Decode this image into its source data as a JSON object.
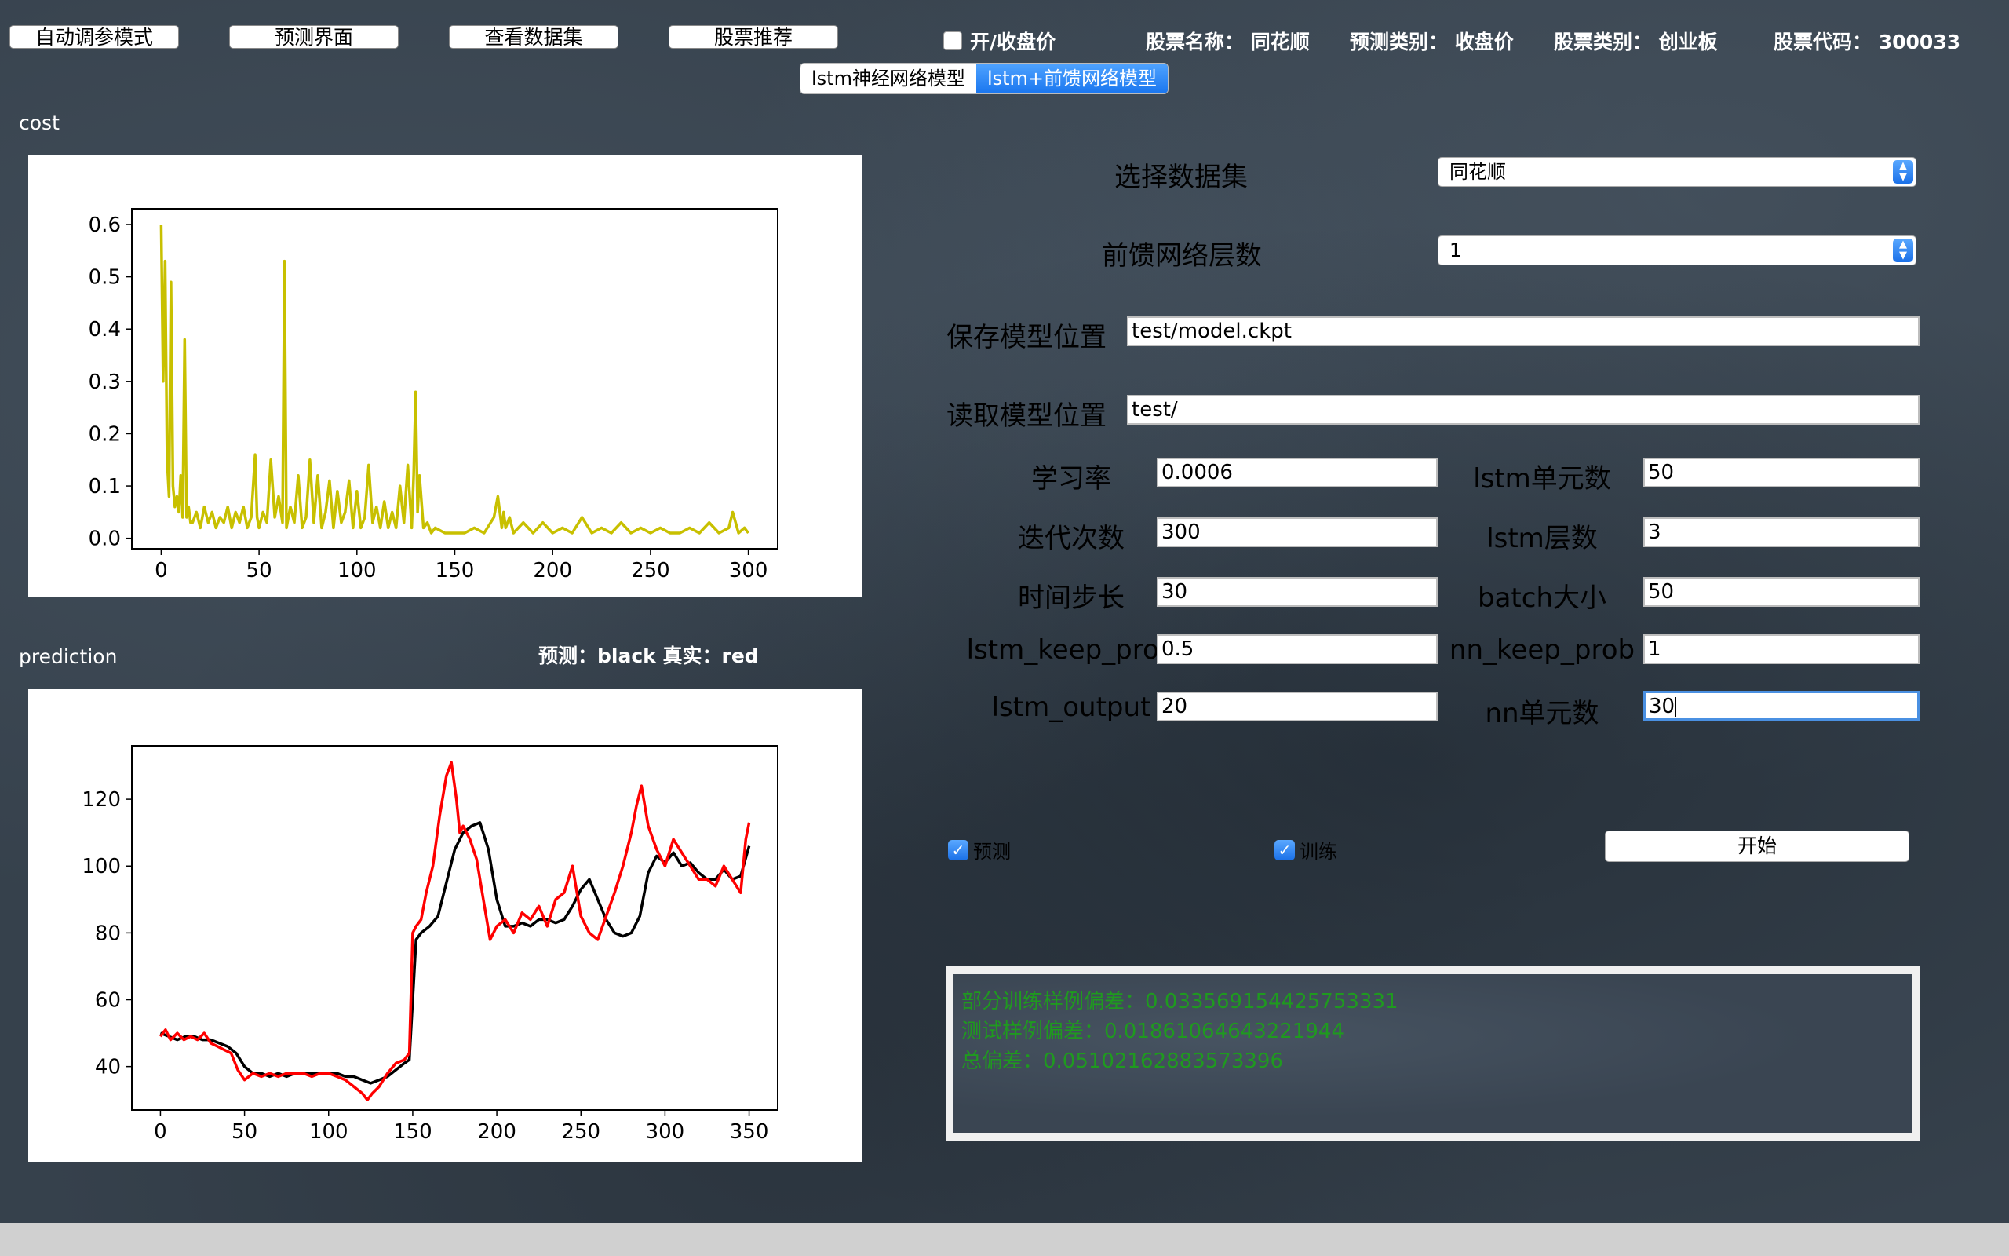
{
  "toolbar": {
    "auto_tune": "自动调参模式",
    "predict_ui": "预测界面",
    "view_dataset": "查看数据集",
    "stock_recommend": "股票推荐"
  },
  "header": {
    "open_close_label": "开/收盘价",
    "open_close_checked": false,
    "stock_name_label": "股票名称：",
    "stock_name": "同花顺",
    "predict_type_label": "预测类别：",
    "predict_type": "收盘价",
    "stock_category_label": "股票类别：",
    "stock_category": "创业板",
    "stock_code_label": "股票代码：",
    "stock_code": "300033"
  },
  "tabs": [
    {
      "label": "lstm神经网络模型",
      "active": false
    },
    {
      "label": "lstm+前馈网络模型",
      "active": true
    }
  ],
  "cost_section": {
    "label": "cost"
  },
  "prediction_section": {
    "label": "prediction",
    "legend_note": "预测：black 真实：red"
  },
  "form": {
    "dataset_label": "选择数据集",
    "dataset_value": "同花顺",
    "ff_layers_label": "前馈网络层数",
    "ff_layers_value": "1",
    "save_path_label": "保存模型位置",
    "save_path_value": "test/model.ckpt",
    "load_path_label": "读取模型位置",
    "load_path_value": "test/",
    "learning_rate_label": "学习率",
    "learning_rate_value": "0.0006",
    "lstm_units_label": "lstm单元数",
    "lstm_units_value": "50",
    "iterations_label": "迭代次数",
    "iterations_value": "300",
    "lstm_layers_label": "lstm层数",
    "lstm_layers_value": "3",
    "time_steps_label": "时间步长",
    "time_steps_value": "30",
    "batch_size_label": "batch大小",
    "batch_size_value": "50",
    "lstm_keep_prob_label": "lstm_keep_prob",
    "lstm_keep_prob_value": "0.5",
    "nn_keep_prob_label": "nn_keep_prob",
    "nn_keep_prob_value": "1",
    "lstm_output_label": "lstm_output",
    "lstm_output_value": "20",
    "nn_units_label": "nn单元数",
    "nn_units_value": "30"
  },
  "options": {
    "predict_label": "预测",
    "predict_checked": true,
    "train_label": "训练",
    "train_checked": true,
    "start_label": "开始"
  },
  "output": {
    "lines": [
      "部分训练样例偏差：0.033569154425753331",
      "测试样例偏差：0.01861064643221944",
      "总偏差：0.05102162883573396"
    ]
  },
  "colors": {
    "cost_line": "#c8c000",
    "predicted_line": "#000000",
    "real_line": "#ff0000",
    "output_text": "#1f9a1f",
    "active_tab": "#1a76ef"
  },
  "chart_data": [
    {
      "type": "line",
      "title": "",
      "xlabel": "",
      "ylabel": "",
      "xlim": [
        -15,
        315
      ],
      "ylim": [
        -0.02,
        0.63
      ],
      "xticks": [
        0,
        50,
        100,
        150,
        200,
        250,
        300
      ],
      "yticks": [
        0.0,
        0.1,
        0.2,
        0.3,
        0.4,
        0.5,
        0.6
      ],
      "series": [
        {
          "color": "#c8c000",
          "x": [
            0,
            1,
            2,
            3,
            4,
            5,
            6,
            7,
            8,
            9,
            10,
            11,
            12,
            13,
            14,
            15,
            16,
            18,
            20,
            22,
            24,
            26,
            28,
            30,
            32,
            34,
            36,
            38,
            40,
            42,
            44,
            46,
            48,
            49,
            50,
            52,
            54,
            56,
            58,
            60,
            62,
            63,
            64,
            66,
            68,
            70,
            72,
            74,
            76,
            78,
            80,
            82,
            84,
            86,
            88,
            90,
            92,
            94,
            96,
            98,
            100,
            102,
            104,
            106,
            108,
            110,
            112,
            114,
            116,
            118,
            120,
            122,
            124,
            126,
            128,
            129,
            130,
            131,
            132,
            134,
            136,
            138,
            140,
            145,
            150,
            155,
            160,
            165,
            170,
            172,
            174,
            175,
            176,
            178,
            180,
            185,
            190,
            195,
            200,
            205,
            210,
            215,
            220,
            225,
            230,
            235,
            240,
            245,
            250,
            255,
            260,
            265,
            270,
            275,
            280,
            285,
            290,
            292,
            295,
            298,
            300
          ],
          "y": [
            0.6,
            0.3,
            0.53,
            0.15,
            0.08,
            0.49,
            0.1,
            0.06,
            0.08,
            0.05,
            0.12,
            0.04,
            0.38,
            0.04,
            0.06,
            0.03,
            0.03,
            0.05,
            0.02,
            0.06,
            0.03,
            0.05,
            0.02,
            0.04,
            0.03,
            0.06,
            0.02,
            0.05,
            0.03,
            0.06,
            0.02,
            0.04,
            0.16,
            0.04,
            0.02,
            0.05,
            0.03,
            0.15,
            0.04,
            0.08,
            0.03,
            0.53,
            0.02,
            0.06,
            0.03,
            0.12,
            0.02,
            0.04,
            0.15,
            0.03,
            0.12,
            0.02,
            0.05,
            0.11,
            0.02,
            0.09,
            0.03,
            0.05,
            0.11,
            0.02,
            0.09,
            0.02,
            0.04,
            0.14,
            0.03,
            0.06,
            0.02,
            0.07,
            0.02,
            0.05,
            0.02,
            0.1,
            0.03,
            0.14,
            0.02,
            0.12,
            0.28,
            0.05,
            0.12,
            0.02,
            0.03,
            0.01,
            0.02,
            0.01,
            0.01,
            0.01,
            0.02,
            0.01,
            0.04,
            0.08,
            0.02,
            0.05,
            0.02,
            0.04,
            0.01,
            0.03,
            0.01,
            0.03,
            0.01,
            0.02,
            0.01,
            0.04,
            0.01,
            0.02,
            0.01,
            0.03,
            0.01,
            0.02,
            0.01,
            0.02,
            0.01,
            0.01,
            0.02,
            0.01,
            0.03,
            0.01,
            0.02,
            0.05,
            0.01,
            0.02,
            0.01
          ]
        }
      ]
    },
    {
      "type": "line",
      "title": "",
      "xlabel": "",
      "ylabel": "",
      "xlim": [
        -17,
        367
      ],
      "ylim": [
        27,
        136
      ],
      "xticks": [
        0,
        50,
        100,
        150,
        200,
        250,
        300,
        350
      ],
      "yticks": [
        40,
        60,
        80,
        100,
        120
      ],
      "series": [
        {
          "color": "#000000",
          "x": [
            0,
            5,
            10,
            15,
            20,
            25,
            30,
            35,
            40,
            45,
            50,
            55,
            60,
            65,
            70,
            75,
            80,
            85,
            90,
            95,
            100,
            105,
            110,
            115,
            120,
            125,
            130,
            135,
            140,
            145,
            148,
            150,
            152,
            155,
            160,
            165,
            170,
            175,
            180,
            185,
            190,
            195,
            200,
            205,
            210,
            215,
            220,
            225,
            230,
            235,
            240,
            245,
            250,
            255,
            260,
            265,
            270,
            275,
            280,
            285,
            290,
            295,
            300,
            305,
            310,
            315,
            320,
            325,
            330,
            335,
            340,
            345,
            350
          ],
          "y": [
            50,
            49,
            48,
            49,
            49,
            48,
            48,
            47,
            46,
            44,
            40,
            38,
            38,
            37,
            38,
            37,
            38,
            38,
            38,
            38,
            38,
            38,
            37,
            37,
            36,
            35,
            36,
            37,
            39,
            41,
            42,
            60,
            78,
            80,
            82,
            85,
            95,
            105,
            110,
            112,
            113,
            105,
            90,
            82,
            82,
            83,
            82,
            84,
            84,
            83,
            84,
            88,
            93,
            96,
            90,
            84,
            80,
            79,
            80,
            85,
            98,
            103,
            101,
            104,
            100,
            101,
            98,
            96,
            96,
            99,
            96,
            97,
            106
          ]
        },
        {
          "color": "#ff0000",
          "x": [
            0,
            3,
            6,
            10,
            14,
            18,
            22,
            26,
            30,
            34,
            38,
            42,
            46,
            50,
            55,
            60,
            65,
            70,
            75,
            80,
            85,
            90,
            95,
            100,
            105,
            110,
            115,
            120,
            123,
            126,
            130,
            135,
            140,
            145,
            148,
            150,
            152,
            155,
            158,
            162,
            166,
            170,
            173,
            176,
            178,
            180,
            184,
            188,
            192,
            196,
            200,
            205,
            210,
            215,
            220,
            225,
            230,
            235,
            240,
            245,
            250,
            255,
            260,
            265,
            270,
            275,
            280,
            283,
            286,
            290,
            295,
            300,
            305,
            310,
            315,
            320,
            325,
            330,
            335,
            340,
            345,
            348,
            350
          ],
          "y": [
            49,
            51,
            48,
            50,
            48,
            49,
            48,
            50,
            47,
            46,
            45,
            44,
            39,
            36,
            38,
            37,
            38,
            37,
            38,
            38,
            38,
            37,
            38,
            38,
            37,
            36,
            34,
            32,
            30,
            32,
            34,
            38,
            41,
            42,
            44,
            80,
            82,
            84,
            92,
            100,
            115,
            127,
            131,
            120,
            110,
            112,
            108,
            102,
            90,
            78,
            82,
            84,
            80,
            86,
            84,
            88,
            82,
            90,
            92,
            100,
            85,
            80,
            78,
            85,
            92,
            100,
            110,
            118,
            124,
            112,
            105,
            100,
            108,
            104,
            100,
            96,
            96,
            94,
            100,
            96,
            92,
            108,
            113
          ]
        }
      ]
    }
  ]
}
